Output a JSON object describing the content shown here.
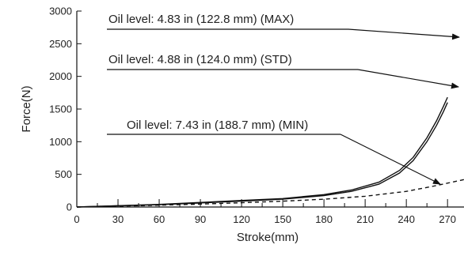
{
  "chart_data": {
    "type": "line",
    "xlabel": "Stroke(mm)",
    "ylabel": "Force(N)",
    "xlim": [
      0,
      282
    ],
    "ylim": [
      0,
      3000
    ],
    "xticks": [
      "0",
      "30",
      "60",
      "90",
      "120",
      "150",
      "180",
      "210",
      "240",
      "270"
    ],
    "yticks": [
      "0",
      "500",
      "1000",
      "1500",
      "2000",
      "2500",
      "3000"
    ],
    "grid": false,
    "legend": "none",
    "series": [
      {
        "name": "Oil level: 4.83 in (122.8 mm) (MAX)",
        "style": "solid",
        "x": [
          0,
          30,
          60,
          90,
          120,
          150,
          180,
          200,
          220,
          235,
          245,
          255,
          262,
          267,
          270
        ],
        "y": [
          0,
          20,
          40,
          70,
          100,
          130,
          190,
          260,
          380,
          560,
          760,
          1060,
          1320,
          1540,
          1680
        ]
      },
      {
        "name": "Oil level: 4.88 in (124.0 mm) (STD)",
        "style": "solid",
        "x": [
          0,
          30,
          60,
          90,
          120,
          150,
          180,
          200,
          220,
          235,
          245,
          255,
          262,
          267,
          270
        ],
        "y": [
          0,
          18,
          36,
          62,
          90,
          120,
          175,
          240,
          350,
          520,
          710,
          1000,
          1250,
          1460,
          1600
        ]
      },
      {
        "name": "Oil level: 7.43 in (188.7 mm) (MIN)",
        "style": "dashed",
        "x": [
          0,
          30,
          60,
          90,
          120,
          150,
          180,
          210,
          240,
          260,
          282
        ],
        "y": [
          0,
          12,
          28,
          45,
          65,
          90,
          120,
          165,
          240,
          320,
          420
        ]
      }
    ],
    "annotations": [
      {
        "text": "Oil level: 4.83 in (122.8 mm) (MAX)",
        "series": 0
      },
      {
        "text": "Oil level: 4.88 in (124.0 mm) (STD)",
        "series": 1
      },
      {
        "text": "Oil level: 7.43 in (188.7 mm) (MIN)",
        "series": 2
      }
    ]
  }
}
